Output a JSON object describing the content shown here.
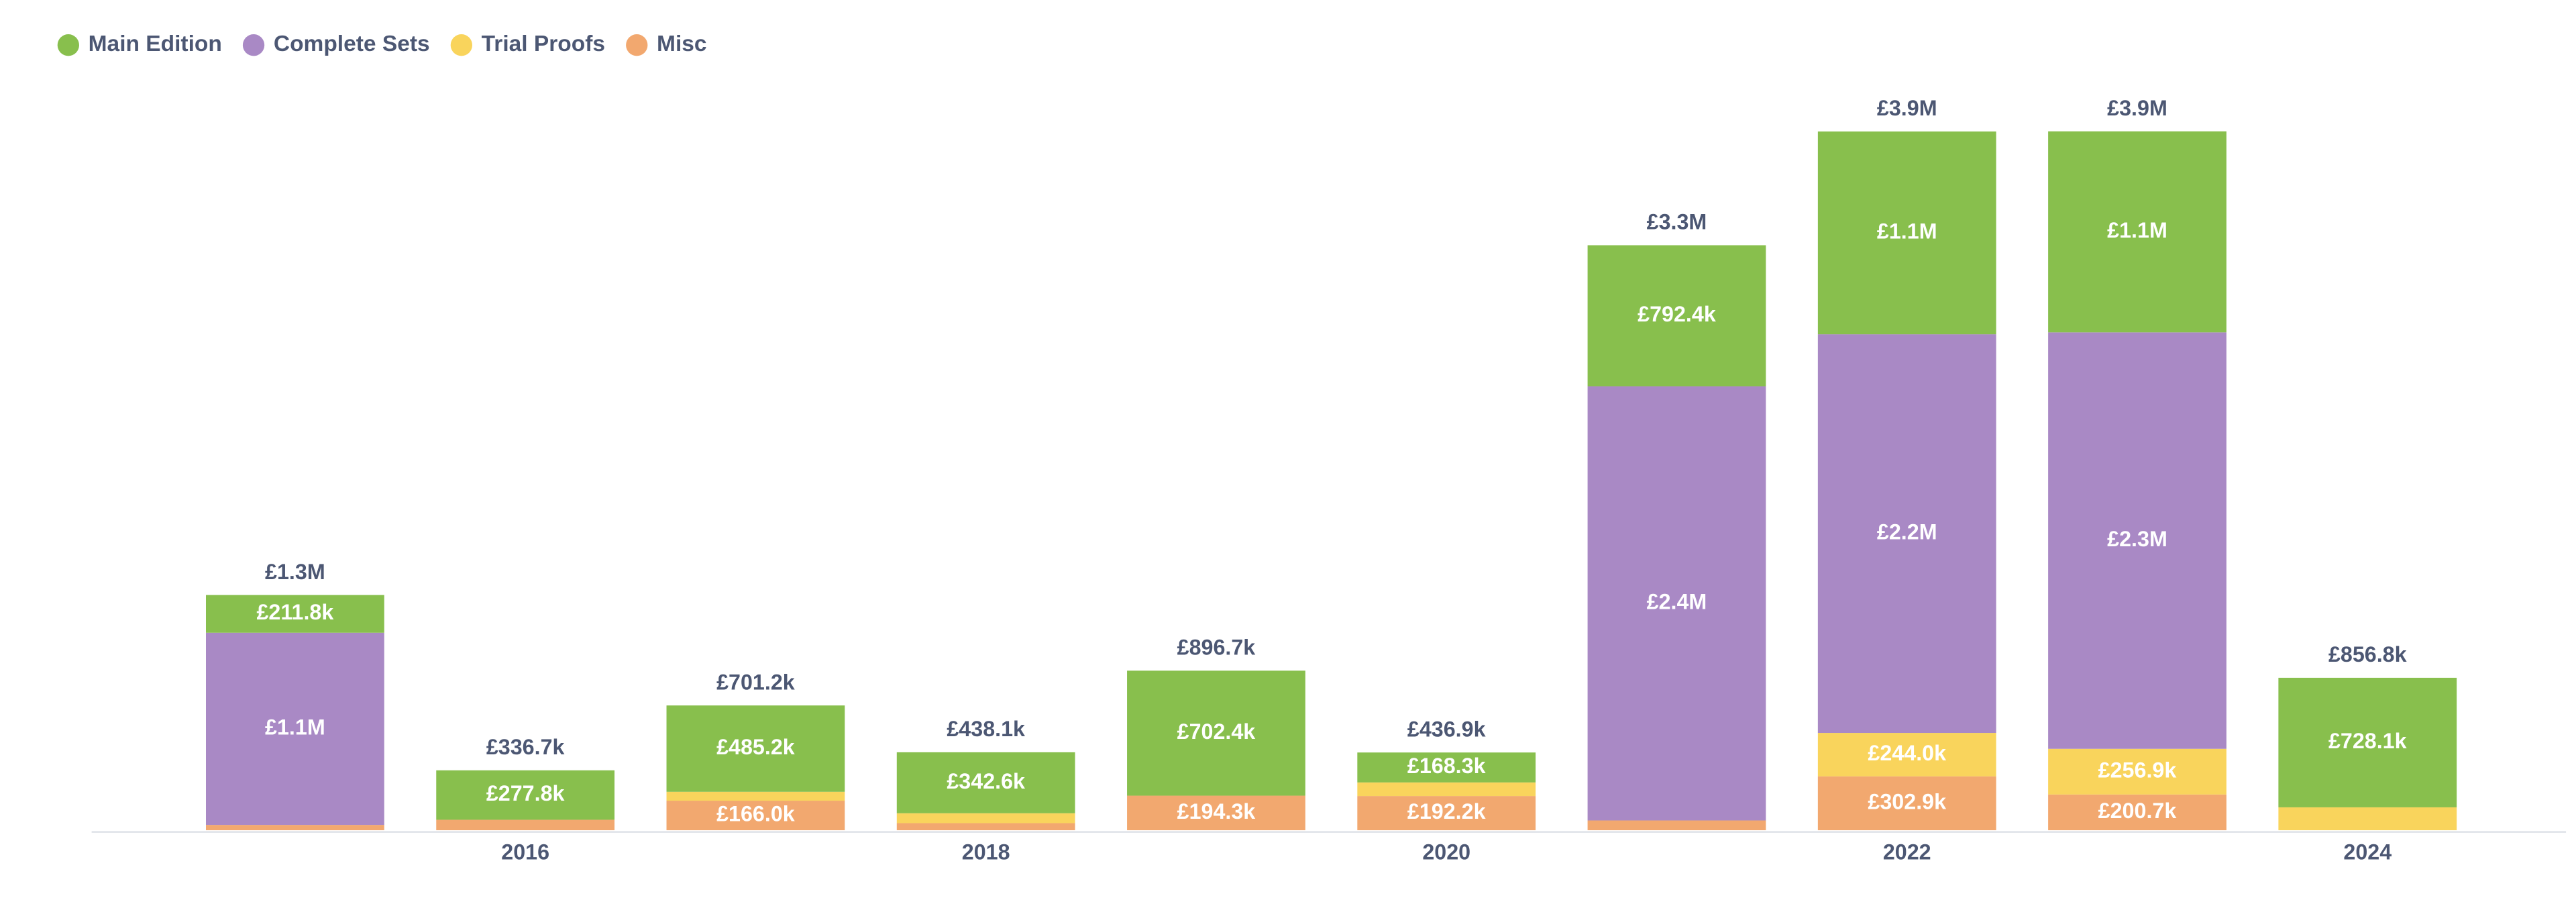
{
  "chart_data": {
    "type": "stacked_bar",
    "categories": [
      null,
      "2016",
      null,
      "2018",
      null,
      "2020",
      null,
      "2022",
      null,
      "2024"
    ],
    "ylim": [
      0,
      4000000
    ],
    "legend_position": "top-left",
    "series": [
      {
        "name": "Misc",
        "color": "#f2a86f",
        "values": [
          30000,
          58900,
          166000,
          40000,
          194300,
          192200,
          55000,
          302900,
          200700,
          0
        ],
        "value_labels": [
          null,
          null,
          "£166.0k",
          null,
          "£194.3k",
          "£192.2k",
          null,
          "£302.9k",
          "£200.7k",
          null
        ]
      },
      {
        "name": "Trial Proofs",
        "color": "#f9d45c",
        "values": [
          0,
          0,
          50000,
          55500,
          0,
          76400,
          0,
          244000,
          256900,
          128700
        ],
        "value_labels": [
          null,
          null,
          null,
          null,
          null,
          null,
          null,
          "£244.0k",
          "£256.9k",
          null
        ]
      },
      {
        "name": "Complete Sets",
        "color": "#a989c5",
        "values": [
          1080000,
          0,
          0,
          0,
          0,
          0,
          2440000,
          2240000,
          2340000,
          0
        ],
        "value_labels": [
          "£1.1M",
          null,
          null,
          null,
          null,
          null,
          "£2.4M",
          "£2.2M",
          "£2.3M",
          null
        ]
      },
      {
        "name": "Main Edition",
        "color": "#88bf4d",
        "values": [
          211800,
          277800,
          485200,
          342600,
          702400,
          168300,
          792400,
          1140000,
          1130000,
          728100
        ],
        "value_labels": [
          "£211.8k",
          "£277.8k",
          "£485.2k",
          "£342.6k",
          "£702.4k",
          "£168.3k",
          "£792.4k",
          "£1.1M",
          "£1.1M",
          "£728.1k"
        ]
      }
    ],
    "total_labels": [
      "£1.3M",
      "£336.7k",
      "£701.2k",
      "£438.1k",
      "£896.7k",
      "£436.9k",
      "£3.3M",
      "£3.9M",
      "£3.9M",
      "£856.8k"
    ]
  }
}
